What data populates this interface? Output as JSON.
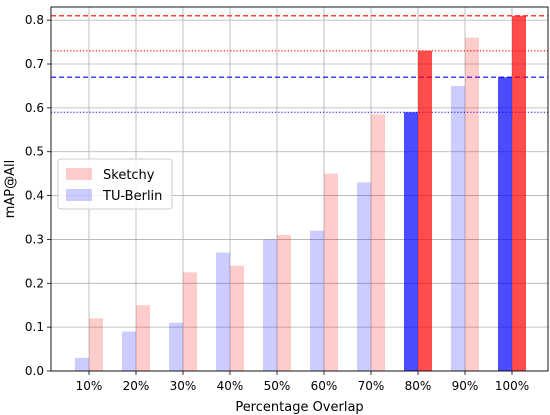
{
  "chart_data": {
    "type": "bar",
    "title": "",
    "xlabel": "Percentage Overlap",
    "ylabel": "mAP@All",
    "categories": [
      "10%",
      "20%",
      "30%",
      "40%",
      "50%",
      "60%",
      "70%",
      "80%",
      "90%",
      "100%"
    ],
    "ylim": [
      0,
      0.83
    ],
    "yticks": [
      "0.0",
      "0.1",
      "0.2",
      "0.3",
      "0.4",
      "0.5",
      "0.6",
      "0.7",
      "0.8"
    ],
    "grid": true,
    "legend_position": "center-left",
    "series": [
      {
        "name": "TU-Berlin",
        "color": "#0000ff",
        "values": [
          0.03,
          0.09,
          0.11,
          0.27,
          0.3,
          0.32,
          0.43,
          0.59,
          0.65,
          0.67
        ],
        "highlight": [
          false,
          false,
          false,
          false,
          false,
          false,
          false,
          true,
          false,
          true
        ]
      },
      {
        "name": "Sketchy",
        "color": "#ff0000",
        "values": [
          0.12,
          0.15,
          0.225,
          0.24,
          0.31,
          0.45,
          0.585,
          0.73,
          0.76,
          0.81
        ],
        "highlight": [
          false,
          false,
          false,
          false,
          false,
          false,
          false,
          true,
          false,
          true
        ]
      }
    ],
    "reference_lines": [
      {
        "value": 0.81,
        "color": "#ff0000",
        "style": "dashed"
      },
      {
        "value": 0.73,
        "color": "#ff0000",
        "style": "dotted"
      },
      {
        "value": 0.67,
        "color": "#0000ff",
        "style": "dashed"
      },
      {
        "value": 0.59,
        "color": "#0000ff",
        "style": "dotted"
      }
    ]
  }
}
